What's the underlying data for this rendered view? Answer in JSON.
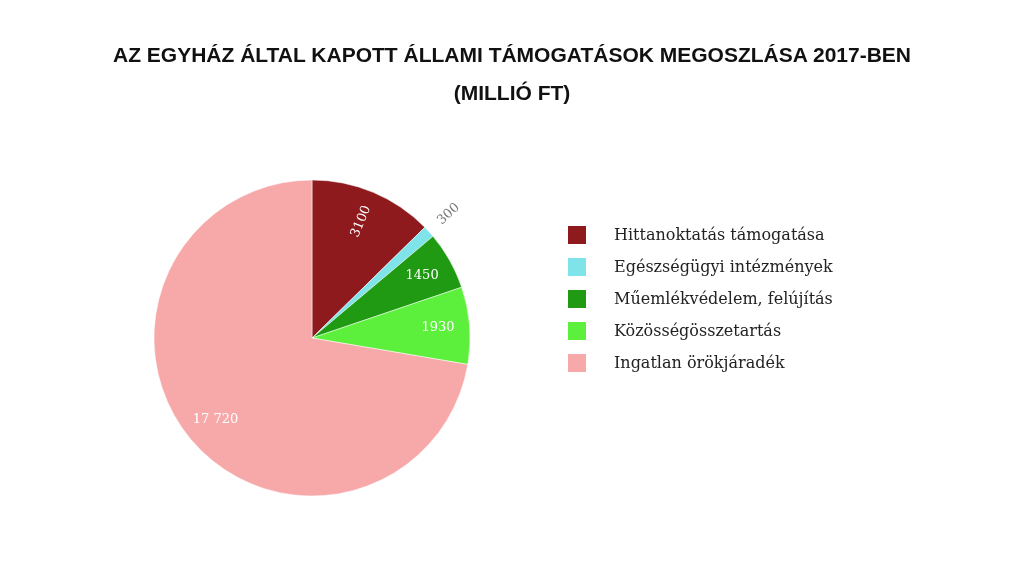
{
  "chart_data": {
    "type": "pie",
    "title": "AZ EGYHÁZ ÁLTAL KAPOTT ÁLLAMI TÁMOGATÁSOK MEGOSZLÁSA 2017-BEN\n(MILLIÓ FT)",
    "categories": [
      "Hittanoktatás támogatása",
      "Egészségügyi intézmények",
      "Műemlékvédelem, felújítás",
      "Közösségösszetartás",
      "Ingatlan örökjáradék"
    ],
    "values": [
      3100,
      300,
      1450,
      1930,
      17720
    ],
    "value_labels": [
      "3100",
      "300",
      "1450",
      "1930",
      "17 720"
    ],
    "colors": [
      "#8e1a1e",
      "#7fe3ea",
      "#1f9a12",
      "#5cf03c",
      "#f7a9aa"
    ],
    "legend": "right"
  }
}
